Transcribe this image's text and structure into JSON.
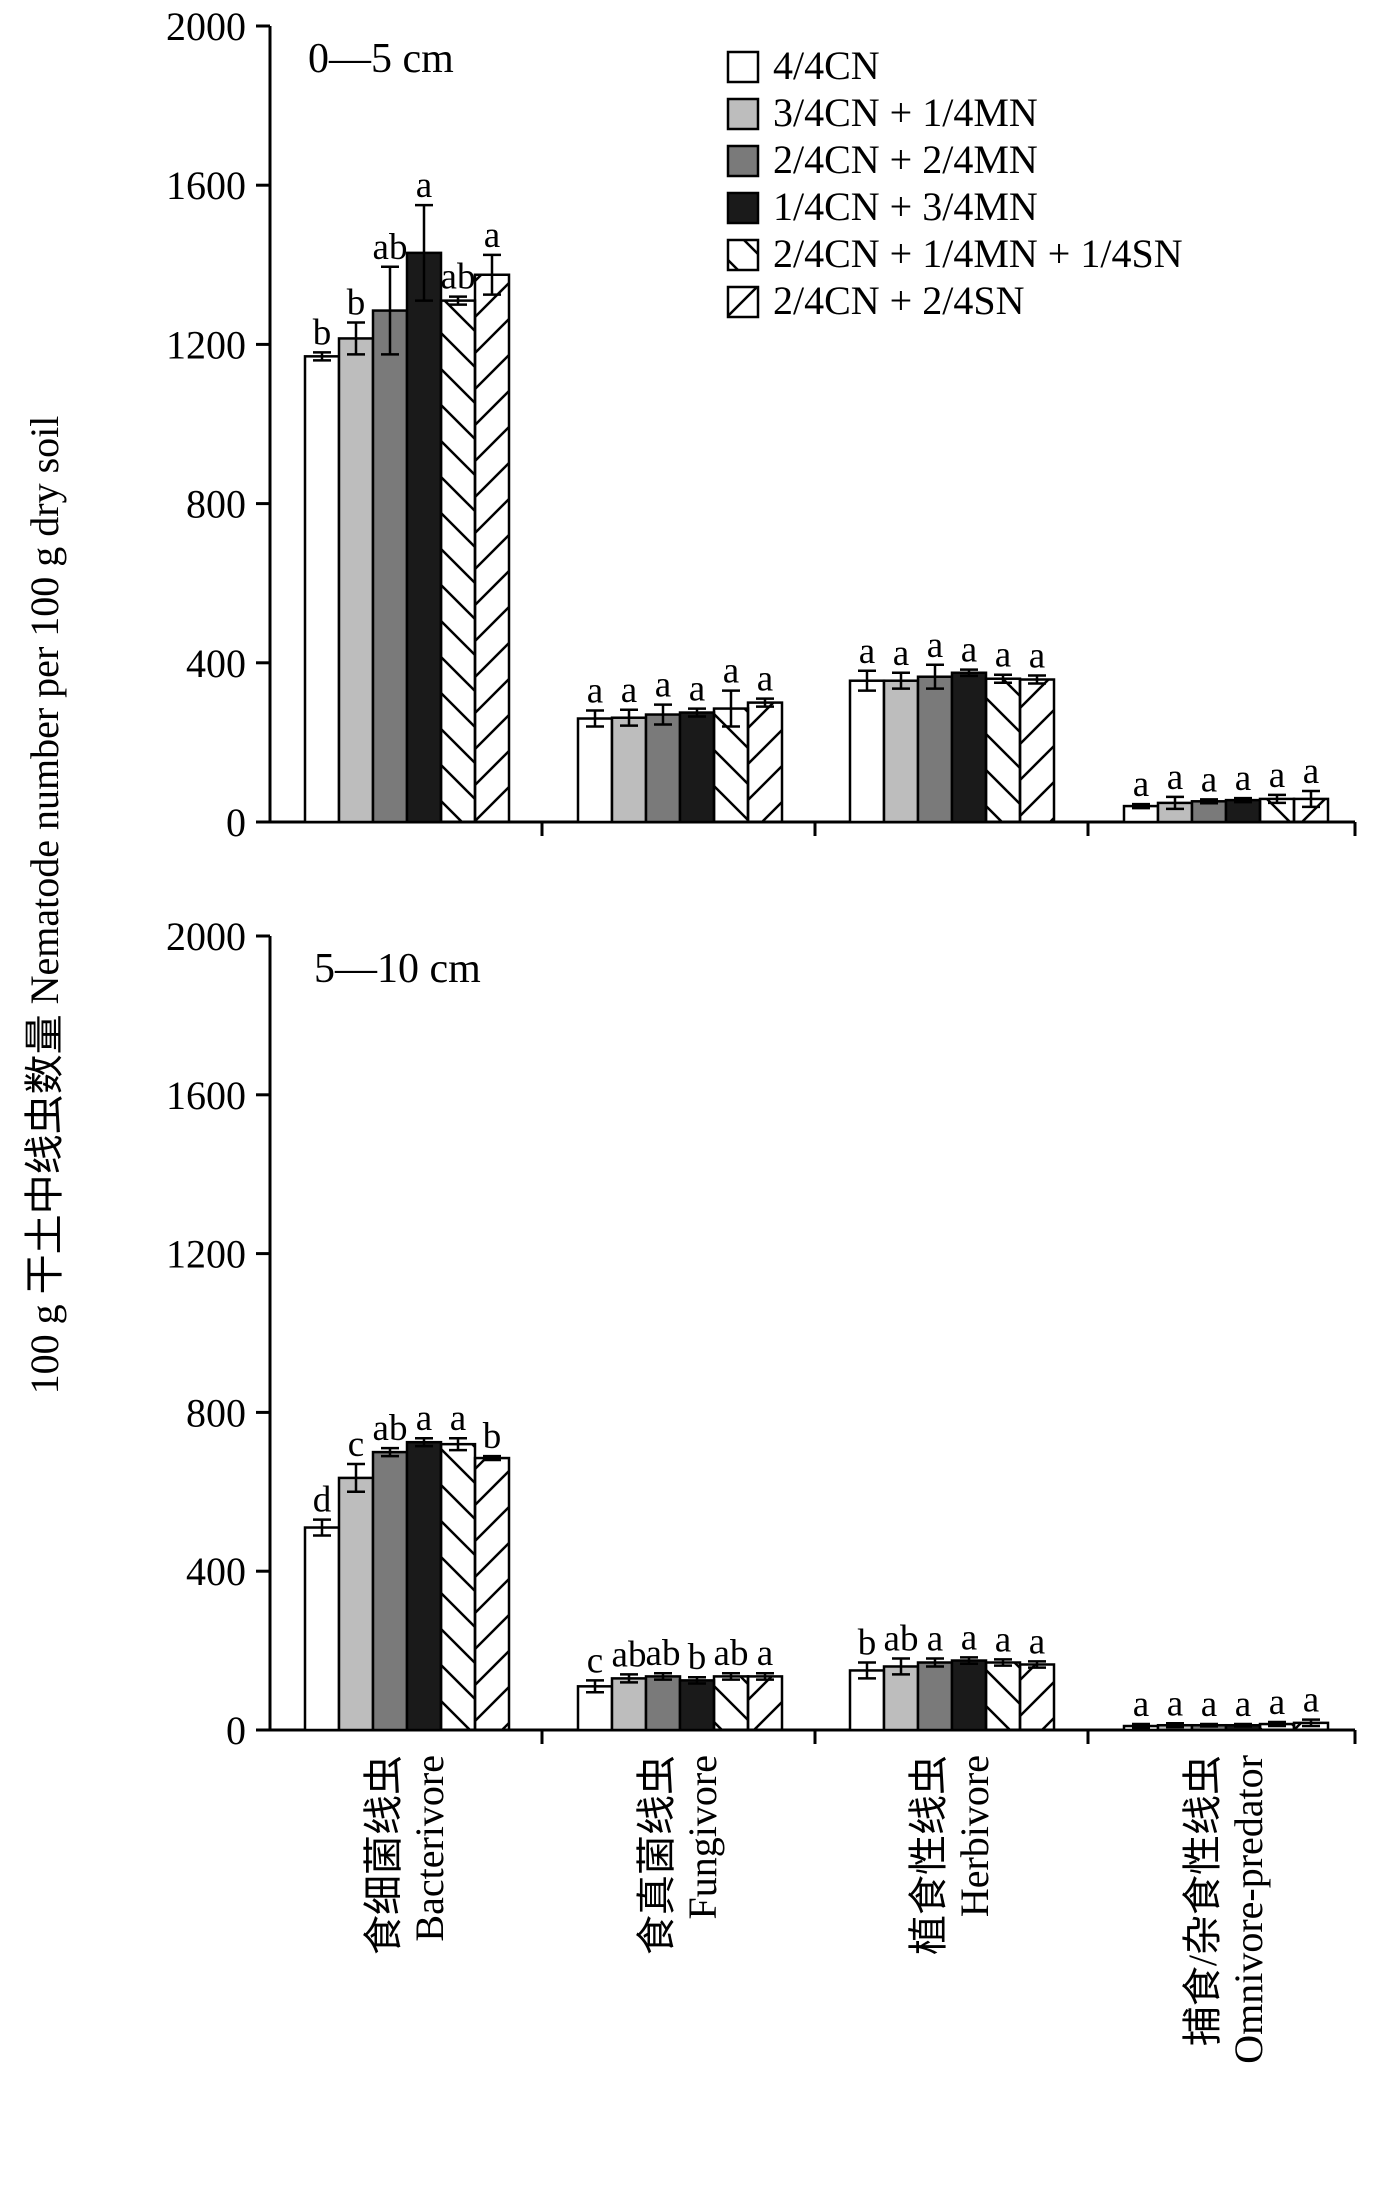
{
  "chart_data": {
    "type": "bar",
    "ylabel": "100 g 干土中线虫数量 Nematode number per 100 g dry soil",
    "categories": [
      {
        "cn": "食细菌线虫",
        "en": "Bacterivore"
      },
      {
        "cn": "食真菌线虫",
        "en": "Fungivore"
      },
      {
        "cn": "植食性线虫",
        "en": "Herbivore"
      },
      {
        "cn": "捕食/杂食性线虫",
        "en": "Omnivore-predator"
      }
    ],
    "legend": [
      {
        "label": "4/4CN",
        "fill": "#ffffff",
        "pattern": "none"
      },
      {
        "label": "3/4CN + 1/4MN",
        "fill": "#bdbdbd",
        "pattern": "none"
      },
      {
        "label": "2/4CN + 2/4MN",
        "fill": "#7a7a7a",
        "pattern": "none"
      },
      {
        "label": "1/4CN + 3/4MN",
        "fill": "#1a1a1a",
        "pattern": "none"
      },
      {
        "label": "2/4CN + 1/4MN + 1/4SN",
        "fill": "#ffffff",
        "pattern": "backslash"
      },
      {
        "label": "2/4CN + 2/4SN",
        "fill": "#ffffff",
        "pattern": "slash"
      }
    ],
    "yticks": [
      "0",
      "400",
      "800",
      "1200",
      "1600",
      "2000"
    ],
    "ylim": [
      0,
      2000
    ],
    "panels": [
      {
        "label": "0—5 cm",
        "values": [
          [
            1170,
            1215,
            1285,
            1430,
            1310,
            1375
          ],
          [
            260,
            262,
            270,
            275,
            285,
            300
          ],
          [
            355,
            355,
            365,
            375,
            360,
            358
          ],
          [
            40,
            48,
            52,
            55,
            58,
            58
          ]
        ],
        "errors": [
          [
            10,
            40,
            110,
            120,
            10,
            50
          ],
          [
            20,
            20,
            25,
            10,
            45,
            10
          ],
          [
            25,
            20,
            30,
            8,
            10,
            10
          ],
          [
            5,
            15,
            5,
            5,
            10,
            20
          ]
        ],
        "letters": [
          [
            "b",
            "b",
            "ab",
            "a",
            "ab",
            "a"
          ],
          [
            "a",
            "a",
            "a",
            "a",
            "a",
            "a"
          ],
          [
            "a",
            "a",
            "a",
            "a",
            "a",
            "a"
          ],
          [
            "a",
            "a",
            "a",
            "a",
            "a",
            "a"
          ]
        ]
      },
      {
        "label": "5—10 cm",
        "values": [
          [
            510,
            635,
            700,
            725,
            720,
            685
          ],
          [
            110,
            130,
            135,
            125,
            135,
            135
          ],
          [
            150,
            160,
            170,
            175,
            170,
            165
          ],
          [
            10,
            12,
            12,
            12,
            15,
            18
          ]
        ],
        "errors": [
          [
            20,
            35,
            10,
            10,
            15,
            5
          ],
          [
            15,
            10,
            8,
            8,
            8,
            8
          ],
          [
            20,
            20,
            10,
            8,
            8,
            8
          ],
          [
            5,
            5,
            3,
            3,
            5,
            8
          ]
        ],
        "letters": [
          [
            "d",
            "c",
            "ab",
            "a",
            "a",
            "b"
          ],
          [
            "c",
            "ab",
            "ab",
            "b",
            "ab",
            "a"
          ],
          [
            "b",
            "ab",
            "a",
            "a",
            "a",
            "a"
          ],
          [
            "a",
            "a",
            "a",
            "a",
            "a",
            "a"
          ]
        ]
      }
    ]
  }
}
